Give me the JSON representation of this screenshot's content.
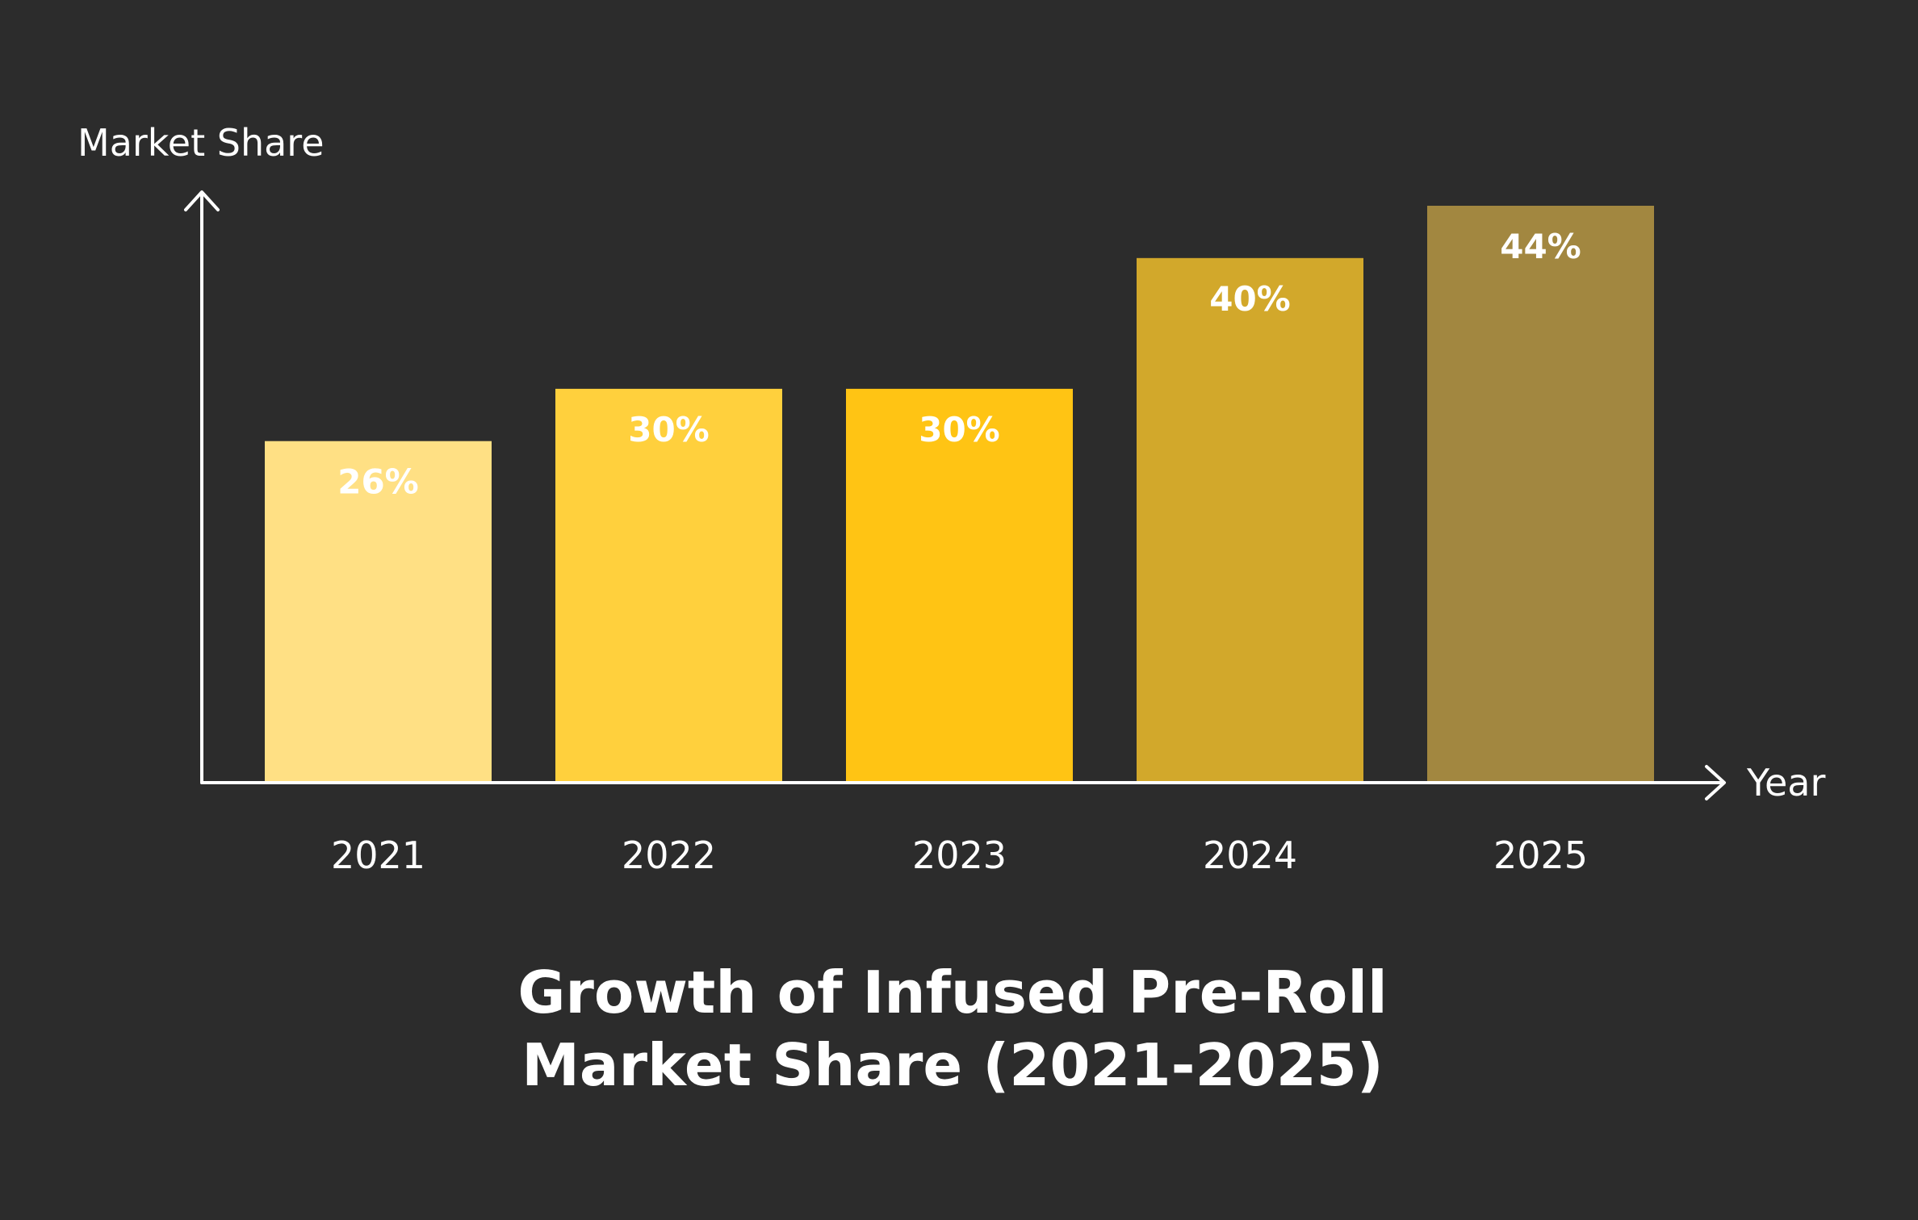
{
  "chart_data": {
    "type": "bar",
    "title_lines": [
      "Growth of Infused Pre-Roll",
      "Market Share (2021-2025)"
    ],
    "xlabel": "Year",
    "ylabel": "Market Share",
    "categories": [
      "2021",
      "2022",
      "2023",
      "2024",
      "2025"
    ],
    "values": [
      26,
      30,
      30,
      40,
      44
    ],
    "value_labels": [
      "26%",
      "30%",
      "30%",
      "40%",
      "44%"
    ],
    "bar_colors": [
      "#ffe084",
      "#ffd03d",
      "#ffc414",
      "#d2a82b",
      "#a28740"
    ],
    "ylim": [
      0,
      44
    ],
    "grid": false,
    "legend": "none"
  },
  "colors": {
    "background": "#2c2c2c",
    "axis": "#ffffff",
    "text": "#ffffff"
  }
}
